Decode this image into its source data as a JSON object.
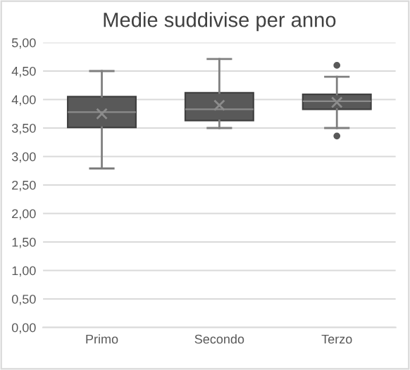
{
  "chart_data": {
    "type": "box",
    "title": "Medie suddivise per anno",
    "categories": [
      "Primo",
      "Secondo",
      "Terzo"
    ],
    "boxes": [
      {
        "low": 2.79,
        "q1": 3.51,
        "median": 3.78,
        "q3": 4.05,
        "high": 4.5,
        "mean": 3.75
      },
      {
        "low": 3.5,
        "q1": 3.63,
        "median": 3.83,
        "q3": 4.12,
        "high": 4.71,
        "mean": 3.9
      },
      {
        "low": 3.5,
        "q1": 3.83,
        "median": 3.97,
        "q3": 4.09,
        "high": 4.4,
        "mean": 3.95,
        "outliers": [
          4.6,
          3.36
        ]
      }
    ],
    "color": "#595959",
    "ylim": [
      0,
      5
    ],
    "yticks": [
      {
        "value": 0,
        "label": "0,00"
      },
      {
        "value": 0.5,
        "label": "0,50"
      },
      {
        "value": 1,
        "label": "1,00"
      },
      {
        "value": 1.5,
        "label": "1,50"
      },
      {
        "value": 2,
        "label": "2,00"
      },
      {
        "value": 2.5,
        "label": "2,50"
      },
      {
        "value": 3,
        "label": "3,00"
      },
      {
        "value": 3.5,
        "label": "3,50"
      },
      {
        "value": 4,
        "label": "4,00"
      },
      {
        "value": 4.5,
        "label": "4,50"
      },
      {
        "value": 5,
        "label": "5,00"
      }
    ],
    "grid": "y"
  }
}
